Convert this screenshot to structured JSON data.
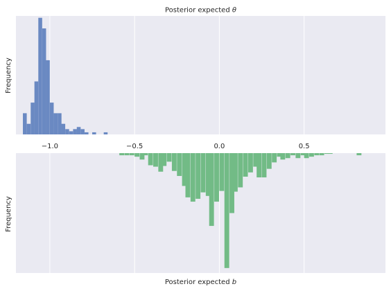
{
  "colors": {
    "background": "#ffffff",
    "plot_bg": "#eaeaf2",
    "grid": "#ffffff",
    "text": "#262626",
    "theta_bars": "#6a89c2",
    "b_bars": "#72bb86"
  },
  "chart_data": [
    {
      "type": "bar",
      "orientation": "histogram",
      "title": "Posterior expected θ",
      "xlabel": "",
      "ylabel": "Frequency",
      "xlim": [
        -1.2,
        0.98
      ],
      "xticks": [
        -1.0,
        -0.5,
        0.0,
        0.5
      ],
      "xtick_labels": [
        "−1.0",
        "−0.5",
        "0.0",
        "0.5"
      ],
      "yticks_shown": false,
      "grid": true,
      "bin_width": 0.0227,
      "series": [
        {
          "bins": [
            [
              -1.159,
              2
            ],
            [
              -1.136,
              1
            ],
            [
              -1.113,
              3
            ],
            [
              -1.091,
              5
            ],
            [
              -1.068,
              11
            ],
            [
              -1.045,
              10
            ],
            [
              -1.023,
              7
            ],
            [
              -1.0,
              3
            ],
            [
              -0.977,
              2
            ],
            [
              -0.954,
              2
            ],
            [
              -0.932,
              1
            ],
            [
              -0.909,
              0.5
            ],
            [
              -0.886,
              0.3
            ],
            [
              -0.863,
              0.5
            ],
            [
              -0.841,
              0.7
            ],
            [
              -0.818,
              0.5
            ],
            [
              -0.795,
              0.2
            ],
            [
              -0.75,
              0.2
            ],
            [
              -0.682,
              0.2
            ]
          ]
        }
      ]
    },
    {
      "type": "bar",
      "orientation": "histogram-inverted",
      "title": "",
      "xlabel": "Posterior expected b",
      "ylabel": "Frequency",
      "xlim": [
        -1.2,
        0.98
      ],
      "xticks": [
        -1.0,
        -0.5,
        0.0,
        0.5
      ],
      "xtick_labels": [
        "",
        "",
        "",
        ""
      ],
      "yticks_shown": false,
      "grid": true,
      "bin_width": 0.0282,
      "series": [
        {
          "bins": [
            [
              -0.59,
              0.3
            ],
            [
              -0.56,
              0.3
            ],
            [
              -0.53,
              0.3
            ],
            [
              -0.5,
              0.5
            ],
            [
              -0.47,
              0.9
            ],
            [
              -0.45,
              0.3
            ],
            [
              -0.42,
              1.7
            ],
            [
              -0.39,
              1.9
            ],
            [
              -0.36,
              2.6
            ],
            [
              -0.34,
              1.8
            ],
            [
              -0.31,
              1.2
            ],
            [
              -0.28,
              2.5
            ],
            [
              -0.25,
              3.2
            ],
            [
              -0.22,
              4.6
            ],
            [
              -0.2,
              6.2
            ],
            [
              -0.17,
              6.8
            ],
            [
              -0.14,
              6.4
            ],
            [
              -0.11,
              5.5
            ],
            [
              -0.08,
              6.0
            ],
            [
              -0.06,
              10.2
            ],
            [
              -0.03,
              6.8
            ],
            [
              0.0,
              5.3
            ],
            [
              0.03,
              16.1
            ],
            [
              0.06,
              8.4
            ],
            [
              0.08,
              5.4
            ],
            [
              0.11,
              4.8
            ],
            [
              0.14,
              3.3
            ],
            [
              0.17,
              2.7
            ],
            [
              0.2,
              1.9
            ],
            [
              0.22,
              3.4
            ],
            [
              0.25,
              3.4
            ],
            [
              0.28,
              2.2
            ],
            [
              0.31,
              1.3
            ],
            [
              0.34,
              0.5
            ],
            [
              0.36,
              0.9
            ],
            [
              0.39,
              0.7
            ],
            [
              0.42,
              0.3
            ],
            [
              0.45,
              0.7
            ],
            [
              0.48,
              0.3
            ],
            [
              0.5,
              0.7
            ],
            [
              0.53,
              0.5
            ],
            [
              0.56,
              0.3
            ],
            [
              0.59,
              0.3
            ],
            [
              0.62,
              0.1
            ],
            [
              0.64,
              0.1
            ],
            [
              0.81,
              0.3
            ]
          ]
        }
      ]
    }
  ]
}
